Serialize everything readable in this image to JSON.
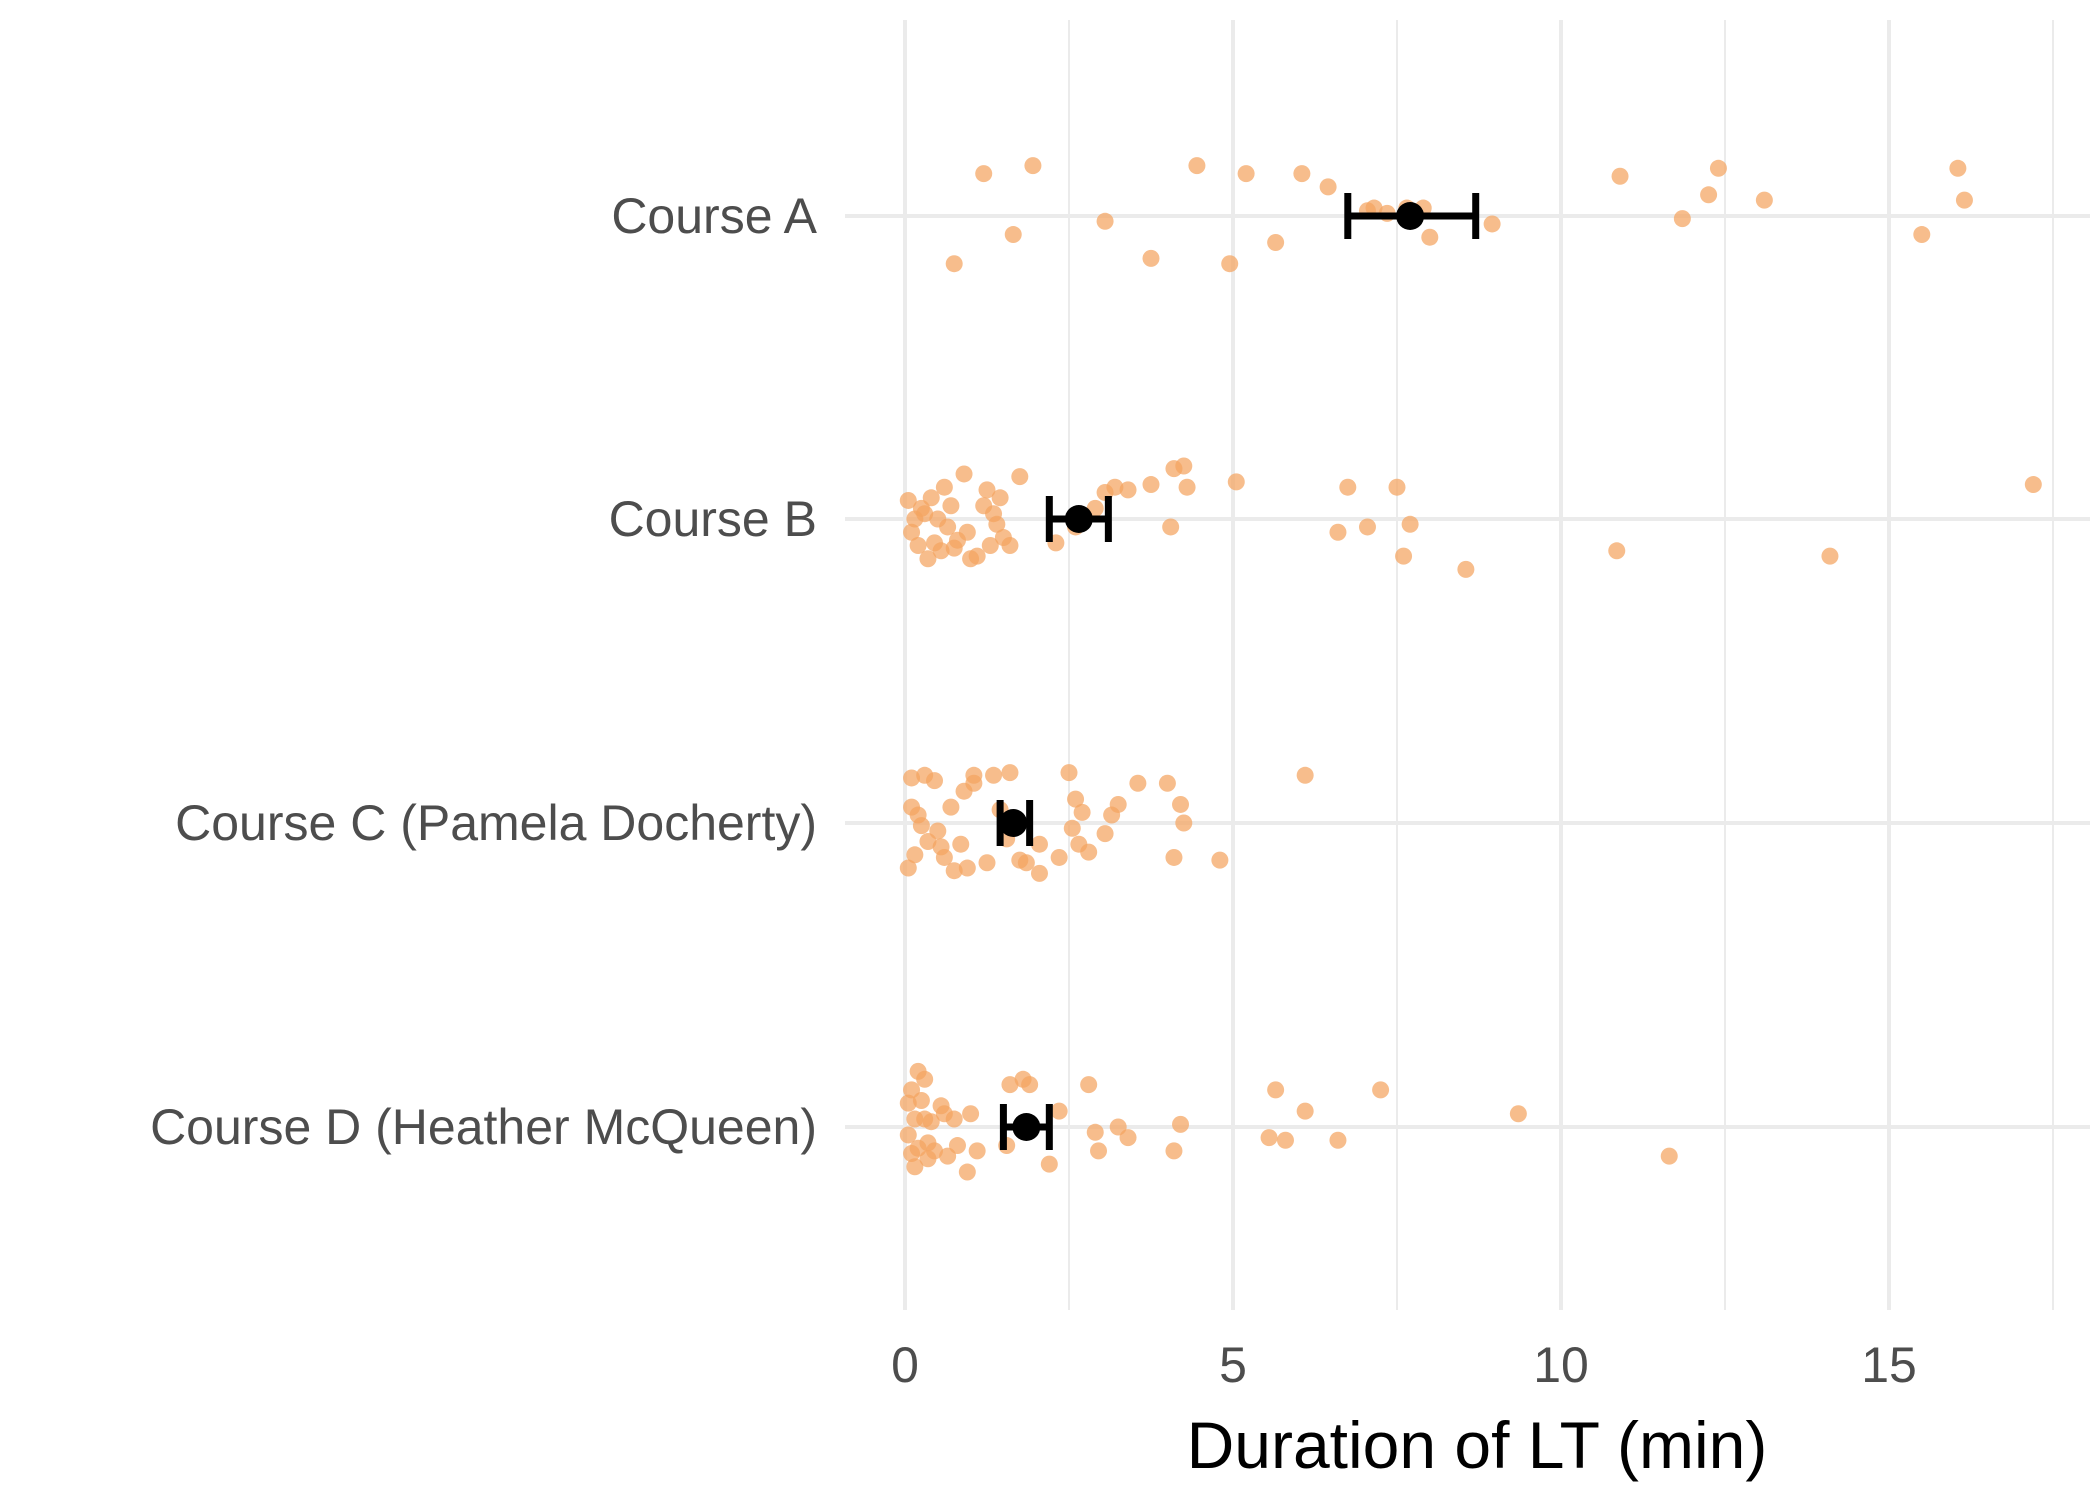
{
  "chart_data": {
    "type": "scatter",
    "orientation": "horizontal",
    "xlabel": "Duration of LT (min)",
    "ylabel": "",
    "xlim": [
      -1.3,
      18.0
    ],
    "x_ticks": [
      0,
      5,
      10,
      15
    ],
    "x_minor_ticks": [
      2.5,
      7.5,
      12.5,
      17.5
    ],
    "grid": true,
    "legend": "none",
    "point_color": "#f4a460",
    "categories": [
      "Course A",
      "Course B",
      "Course C (Pamela Docherty)",
      "Course D (Heather McQueen)"
    ],
    "series": [
      {
        "category": "Course A",
        "mean": 7.7,
        "ci_low": 6.75,
        "ci_high": 8.7,
        "points": [
          [
            1.2,
            0.16
          ],
          [
            1.95,
            0.19
          ],
          [
            1.65,
            -0.07
          ],
          [
            0.75,
            -0.18
          ],
          [
            3.05,
            -0.02
          ],
          [
            3.75,
            -0.16
          ],
          [
            4.45,
            0.19
          ],
          [
            4.95,
            -0.18
          ],
          [
            5.2,
            0.16
          ],
          [
            5.65,
            -0.1
          ],
          [
            6.05,
            0.16
          ],
          [
            6.45,
            0.11
          ],
          [
            7.05,
            0.02
          ],
          [
            7.15,
            0.03
          ],
          [
            7.35,
            0.01
          ],
          [
            7.65,
            0.03
          ],
          [
            7.9,
            0.03
          ],
          [
            8.0,
            -0.08
          ],
          [
            8.95,
            -0.03
          ],
          [
            10.9,
            0.15
          ],
          [
            11.85,
            -0.01
          ],
          [
            12.25,
            0.08
          ],
          [
            12.4,
            0.18
          ],
          [
            13.1,
            0.06
          ],
          [
            15.5,
            -0.07
          ],
          [
            16.05,
            0.18
          ],
          [
            16.15,
            0.06
          ]
        ]
      },
      {
        "category": "Course B",
        "mean": 2.65,
        "ci_low": 2.2,
        "ci_high": 3.1,
        "points": [
          [
            0.05,
            0.07
          ],
          [
            0.1,
            -0.05
          ],
          [
            0.15,
            0.0
          ],
          [
            0.2,
            -0.1
          ],
          [
            0.25,
            0.04
          ],
          [
            0.3,
            0.02
          ],
          [
            0.35,
            -0.15
          ],
          [
            0.4,
            0.08
          ],
          [
            0.45,
            -0.09
          ],
          [
            0.5,
            0.0
          ],
          [
            0.55,
            -0.12
          ],
          [
            0.6,
            0.12
          ],
          [
            0.65,
            -0.03
          ],
          [
            0.7,
            0.05
          ],
          [
            0.75,
            -0.11
          ],
          [
            0.8,
            -0.08
          ],
          [
            0.9,
            0.17
          ],
          [
            0.95,
            -0.05
          ],
          [
            1.0,
            -0.15
          ],
          [
            1.1,
            -0.14
          ],
          [
            1.2,
            0.05
          ],
          [
            1.25,
            0.11
          ],
          [
            1.3,
            -0.1
          ],
          [
            1.35,
            0.02
          ],
          [
            1.4,
            -0.02
          ],
          [
            1.45,
            0.08
          ],
          [
            1.5,
            -0.07
          ],
          [
            1.6,
            -0.1
          ],
          [
            1.75,
            0.16
          ],
          [
            2.3,
            -0.09
          ],
          [
            2.6,
            -0.03
          ],
          [
            2.9,
            0.04
          ],
          [
            3.05,
            0.1
          ],
          [
            3.2,
            0.12
          ],
          [
            3.4,
            0.11
          ],
          [
            3.75,
            0.13
          ],
          [
            4.05,
            -0.03
          ],
          [
            4.1,
            0.19
          ],
          [
            4.25,
            0.2
          ],
          [
            4.3,
            0.12
          ],
          [
            5.05,
            0.14
          ],
          [
            6.6,
            -0.05
          ],
          [
            6.75,
            0.12
          ],
          [
            7.05,
            -0.03
          ],
          [
            7.5,
            0.12
          ],
          [
            7.6,
            -0.14
          ],
          [
            7.7,
            -0.02
          ],
          [
            8.55,
            -0.19
          ],
          [
            10.85,
            -0.12
          ],
          [
            14.1,
            -0.14
          ],
          [
            17.2,
            0.13
          ]
        ]
      },
      {
        "category": "Course C (Pamela Docherty)",
        "mean": 1.65,
        "ci_low": 1.45,
        "ci_high": 1.9,
        "points": [
          [
            0.05,
            -0.17
          ],
          [
            0.1,
            0.17
          ],
          [
            0.1,
            0.06
          ],
          [
            0.15,
            -0.12
          ],
          [
            0.2,
            0.03
          ],
          [
            0.25,
            -0.01
          ],
          [
            0.3,
            0.18
          ],
          [
            0.35,
            -0.07
          ],
          [
            0.45,
            0.16
          ],
          [
            0.5,
            -0.03
          ],
          [
            0.55,
            -0.09
          ],
          [
            0.6,
            -0.13
          ],
          [
            0.7,
            0.06
          ],
          [
            0.75,
            -0.18
          ],
          [
            0.85,
            -0.08
          ],
          [
            0.9,
            0.12
          ],
          [
            0.95,
            -0.17
          ],
          [
            1.05,
            0.15
          ],
          [
            1.05,
            0.18
          ],
          [
            1.25,
            -0.15
          ],
          [
            1.35,
            0.18
          ],
          [
            1.45,
            0.05
          ],
          [
            1.55,
            -0.06
          ],
          [
            1.6,
            0.19
          ],
          [
            1.75,
            -0.14
          ],
          [
            1.85,
            -0.15
          ],
          [
            2.05,
            -0.19
          ],
          [
            2.05,
            -0.08
          ],
          [
            2.35,
            -0.13
          ],
          [
            2.5,
            0.19
          ],
          [
            2.55,
            -0.02
          ],
          [
            2.6,
            0.09
          ],
          [
            2.65,
            -0.08
          ],
          [
            2.7,
            0.04
          ],
          [
            2.8,
            -0.11
          ],
          [
            3.05,
            -0.04
          ],
          [
            3.15,
            0.03
          ],
          [
            3.25,
            0.07
          ],
          [
            3.55,
            0.15
          ],
          [
            4.0,
            0.15
          ],
          [
            4.1,
            -0.13
          ],
          [
            4.2,
            0.07
          ],
          [
            4.25,
            0.0
          ],
          [
            4.8,
            -0.14
          ],
          [
            6.1,
            0.18
          ]
        ]
      },
      {
        "category": "Course D (Heather McQueen)",
        "mean": 1.85,
        "ci_low": 1.5,
        "ci_high": 2.2,
        "points": [
          [
            0.05,
            0.09
          ],
          [
            0.05,
            -0.03
          ],
          [
            0.1,
            -0.1
          ],
          [
            0.1,
            0.14
          ],
          [
            0.15,
            0.03
          ],
          [
            0.15,
            -0.15
          ],
          [
            0.2,
            -0.08
          ],
          [
            0.2,
            0.21
          ],
          [
            0.25,
            0.1
          ],
          [
            0.3,
            0.03
          ],
          [
            0.3,
            0.18
          ],
          [
            0.35,
            -0.06
          ],
          [
            0.35,
            -0.12
          ],
          [
            0.4,
            0.02
          ],
          [
            0.45,
            -0.09
          ],
          [
            0.55,
            0.08
          ],
          [
            0.6,
            0.05
          ],
          [
            0.65,
            -0.11
          ],
          [
            0.75,
            0.03
          ],
          [
            0.8,
            -0.07
          ],
          [
            0.95,
            -0.17
          ],
          [
            1.0,
            0.05
          ],
          [
            1.1,
            -0.09
          ],
          [
            1.55,
            -0.07
          ],
          [
            1.6,
            0.16
          ],
          [
            1.8,
            0.18
          ],
          [
            1.9,
            0.16
          ],
          [
            2.2,
            -0.14
          ],
          [
            2.35,
            0.06
          ],
          [
            2.8,
            0.16
          ],
          [
            2.9,
            -0.02
          ],
          [
            2.95,
            -0.09
          ],
          [
            3.25,
            0.0
          ],
          [
            3.4,
            -0.04
          ],
          [
            4.1,
            -0.09
          ],
          [
            4.2,
            0.01
          ],
          [
            5.55,
            -0.04
          ],
          [
            5.65,
            0.14
          ],
          [
            5.8,
            -0.05
          ],
          [
            6.1,
            0.06
          ],
          [
            6.6,
            -0.05
          ],
          [
            7.25,
            0.14
          ],
          [
            9.35,
            0.05
          ],
          [
            11.65,
            -0.11
          ]
        ]
      }
    ]
  }
}
